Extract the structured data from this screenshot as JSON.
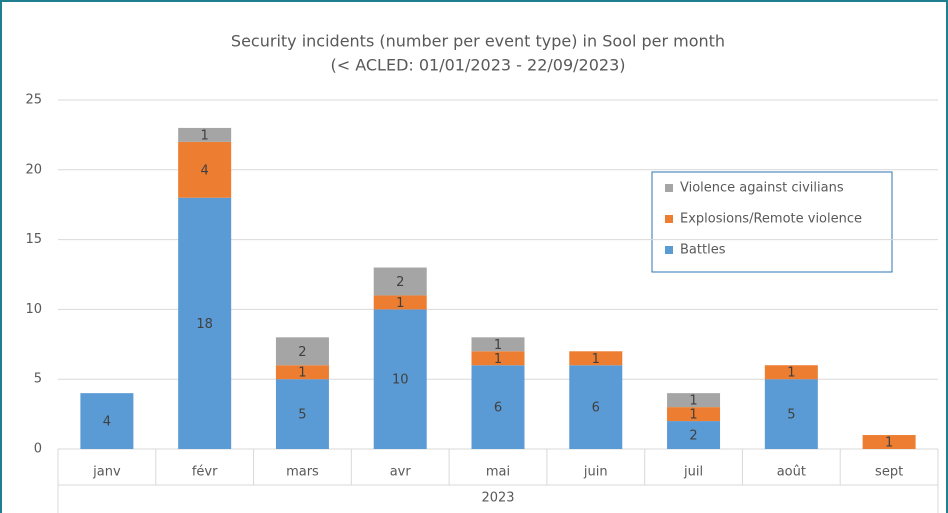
{
  "chart_data": {
    "type": "stacked_bar",
    "title": "Security incidents (number per event type) in Sool per month",
    "subtitle": "(< ACLED: 01/01/2023 - 22/09/2023)",
    "categories": [
      "janv",
      "févr",
      "mars",
      "avr",
      "mai",
      "juin",
      "juil",
      "août",
      "sept"
    ],
    "x_group_label": "2023",
    "series": [
      {
        "name": "Battles",
        "color": "#5b9bd5",
        "values": [
          4,
          18,
          5,
          10,
          6,
          6,
          2,
          5,
          0
        ]
      },
      {
        "name": "Explosions/Remote violence",
        "color": "#ed7d31",
        "values": [
          0,
          4,
          1,
          1,
          1,
          1,
          1,
          1,
          1
        ]
      },
      {
        "name": "Violence against civilians",
        "color": "#a5a5a5",
        "values": [
          0,
          1,
          2,
          2,
          1,
          0,
          1,
          0,
          0
        ]
      }
    ],
    "ylim": [
      0,
      25
    ],
    "yticks": [
      0,
      5,
      10,
      15,
      20,
      25
    ],
    "grid": true,
    "legend": "right"
  }
}
